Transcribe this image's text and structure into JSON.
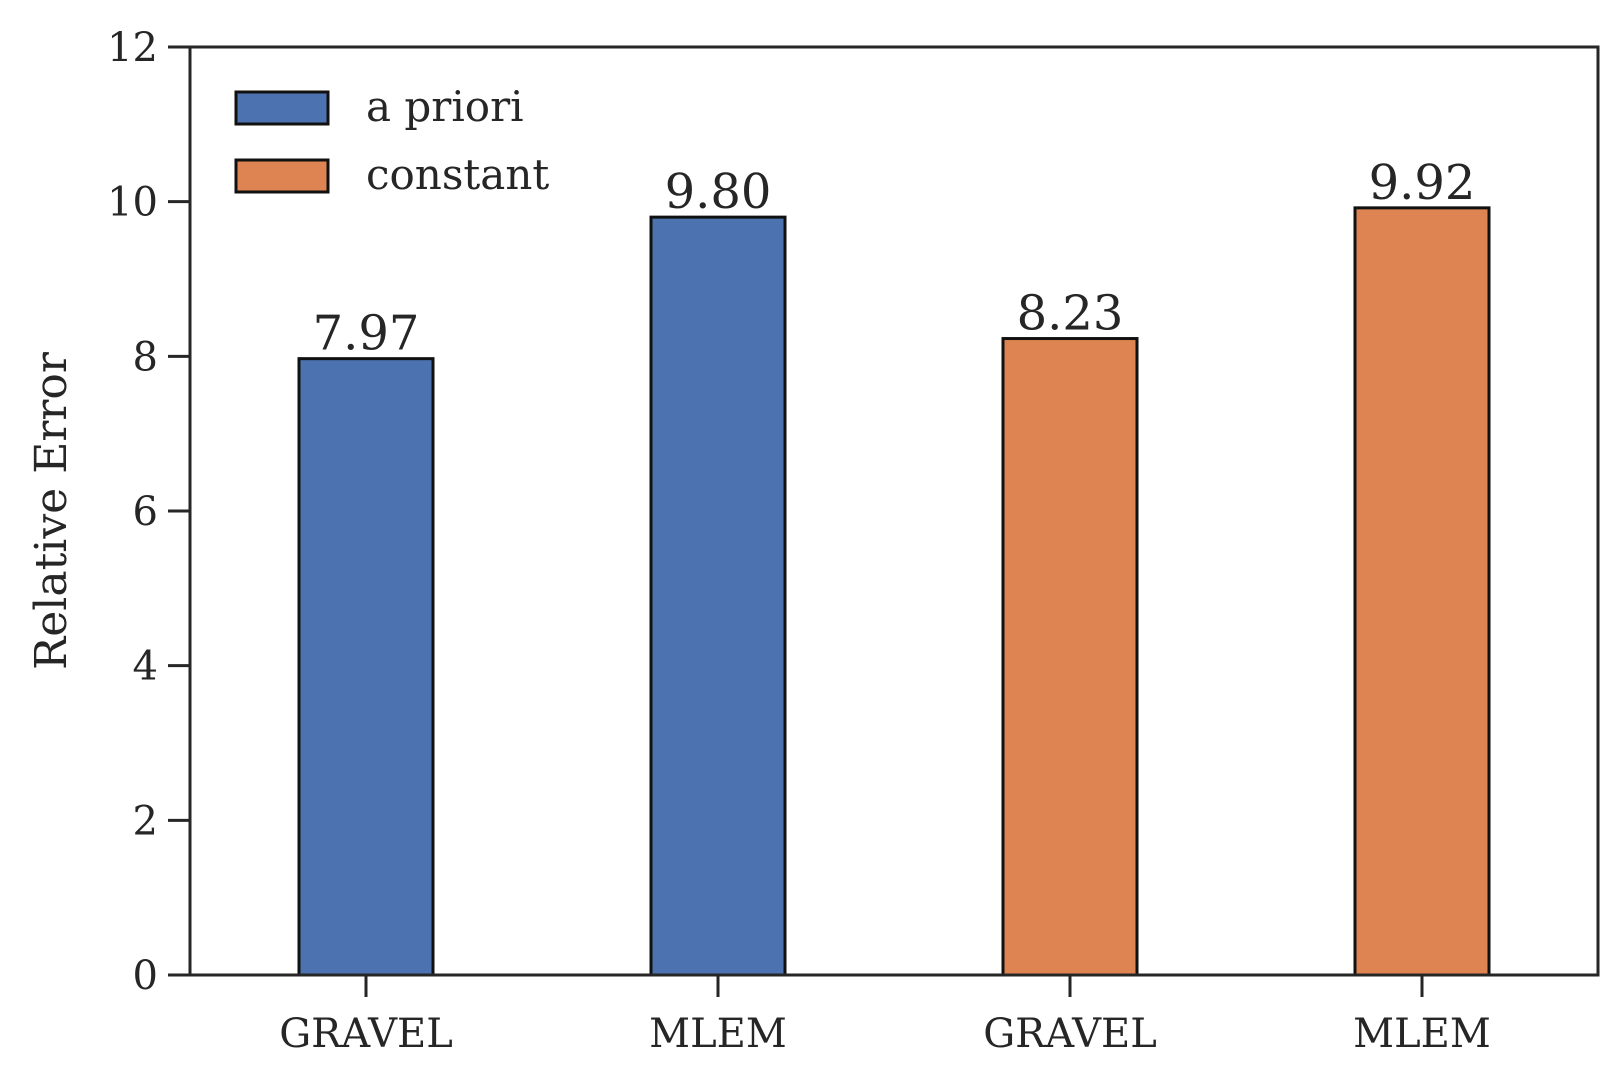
{
  "chart_data": {
    "type": "bar",
    "categories": [
      "GRAVEL",
      "MLEM",
      "GRAVEL",
      "MLEM"
    ],
    "series": [
      {
        "name": "a priori",
        "color": "#4c72b0",
        "values": [
          7.97,
          9.8,
          null,
          null
        ]
      },
      {
        "name": "constant",
        "color": "#dd8452",
        "values": [
          null,
          null,
          8.23,
          9.92
        ]
      }
    ],
    "value_labels": [
      "7.97",
      "9.80",
      "8.23",
      "9.92"
    ],
    "ylabel": "Relative Error",
    "xlabel": "",
    "title": "",
    "ylim": [
      0,
      12
    ],
    "yticks": [
      0,
      2,
      4,
      6,
      8,
      10,
      12
    ],
    "grid": false,
    "legend_position": "top-left"
  }
}
